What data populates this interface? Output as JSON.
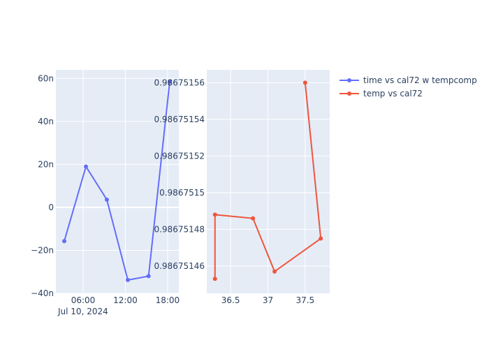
{
  "chart_data": [
    {
      "type": "line",
      "title": "",
      "xlabel": "",
      "ylabel": "",
      "series_name": "time vs cal72 w tempcomp",
      "color": "#636efa",
      "x_hours": [
        3.32,
        6.4,
        9.37,
        12.35,
        15.3,
        18.3
      ],
      "x_labels_approx": [
        "03:19",
        "06:24",
        "09:22",
        "12:21",
        "15:18",
        "18:18"
      ],
      "y": [
        -1.57e-08,
        1.9e-08,
        3.6e-09,
        -3.38e-08,
        -3.2e-08,
        5.84e-08
      ],
      "xlim_hours": [
        2.13,
        19.6
      ],
      "ylim": [
        -4e-08,
        6.4e-08
      ],
      "x_ticks": [
        {
          "v": 6,
          "label": "06:00"
        },
        {
          "v": 12,
          "label": "12:00"
        },
        {
          "v": 18,
          "label": "18:00"
        }
      ],
      "x_date_label": "Jul 10, 2024",
      "y_ticks": [
        {
          "v": 6e-08,
          "label": "60n"
        },
        {
          "v": 4e-08,
          "label": "40n"
        },
        {
          "v": 2e-08,
          "label": "20n"
        },
        {
          "v": 0,
          "label": "0"
        },
        {
          "v": -2e-08,
          "label": "−20n"
        },
        {
          "v": -4e-08,
          "label": "−40n"
        }
      ],
      "grid": true
    },
    {
      "type": "line",
      "title": "",
      "xlabel": "",
      "ylabel": "",
      "series_name": "temp vs cal72",
      "color": "#EF553B",
      "x": [
        36.29,
        36.29,
        36.8,
        37.09,
        37.71,
        37.5
      ],
      "y": [
        0.986751453,
        0.986751488,
        0.986751486,
        0.986751457,
        0.986751475,
        0.98675156
      ],
      "xlim": [
        36.18,
        37.83
      ],
      "ylim": [
        0.9867514451,
        0.986751567
      ],
      "x_ticks": [
        {
          "v": 36.5,
          "label": "36.5"
        },
        {
          "v": 37,
          "label": "37"
        },
        {
          "v": 37.5,
          "label": "37.5"
        }
      ],
      "y_ticks": [
        {
          "v": 0.98675156,
          "label": "0.98675156"
        },
        {
          "v": 0.98675154,
          "label": "0.98675154"
        },
        {
          "v": 0.98675152,
          "label": "0.98675152"
        },
        {
          "v": 0.9867515,
          "label": "0.9867515"
        },
        {
          "v": 0.98675148,
          "label": "0.98675148"
        },
        {
          "v": 0.98675146,
          "label": "0.98675146"
        }
      ],
      "grid": true
    }
  ],
  "legend": {
    "placement": "top-right",
    "items": [
      {
        "label": "time vs cal72 w tempcomp",
        "color": "#636efa"
      },
      {
        "label": "temp vs cal72",
        "color": "#EF553B"
      }
    ]
  }
}
